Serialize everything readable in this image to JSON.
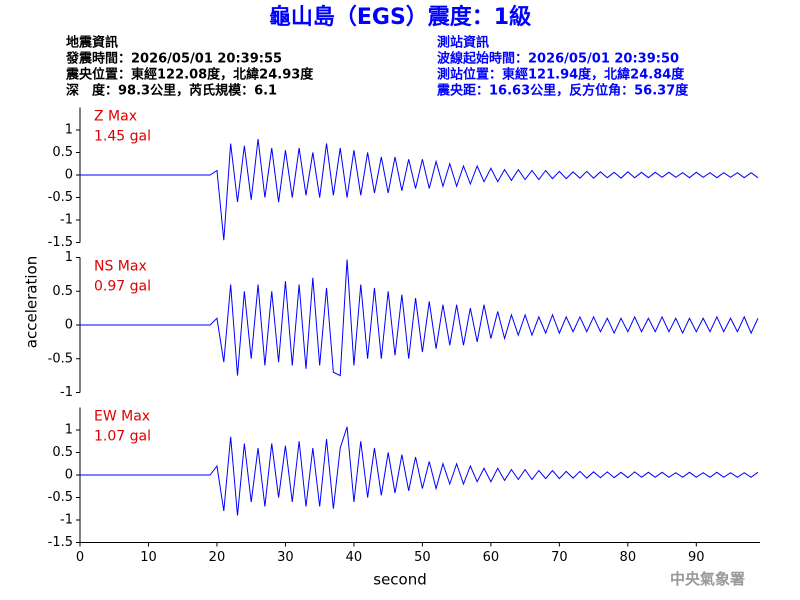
{
  "header": {
    "title": "龜山島（EGS）震度：1級",
    "left": [
      "地震資訊",
      "發震時間：2026/05/01 20:39:55",
      "震央位置：東經122.08度，北緯24.93度",
      "深　度：98.3公里，芮氏規模：6.1"
    ],
    "right": [
      "測站資訊",
      "波線起始時間：2026/05/01 20:39:50",
      "測站位置：東經121.94度，北緯24.84度",
      "震央距：16.63公里，反方位角：56.37度"
    ]
  },
  "y_label": "acceleration",
  "x_label": "second",
  "footer": "中央氣象署",
  "chart_data": [
    {
      "type": "line",
      "annotations": [
        "Z Max",
        "1.45 gal"
      ],
      "xlim": [
        0,
        99.3
      ],
      "ylim": [
        -1.5,
        1.5
      ],
      "yticks": [
        -1.5,
        -1,
        -0.5,
        0,
        0.5,
        1
      ],
      "series": [
        {
          "name": "Z",
          "color": "#0000ff",
          "x": [
            0,
            19,
            20,
            21,
            22,
            23,
            24,
            25,
            26,
            27,
            28,
            29,
            30,
            31,
            32,
            33,
            34,
            35,
            36,
            37,
            38,
            39,
            40,
            41,
            42,
            43,
            44,
            45,
            46,
            47,
            48,
            49,
            50,
            51,
            52,
            53,
            54,
            55,
            56,
            57,
            58,
            59,
            60,
            61,
            62,
            63,
            64,
            65,
            66,
            67,
            68,
            69,
            70,
            71,
            72,
            73,
            74,
            75,
            76,
            77,
            78,
            79,
            80,
            81,
            82,
            83,
            84,
            85,
            86,
            87,
            88,
            89,
            90,
            91,
            92,
            93,
            94,
            95,
            96,
            97,
            98,
            99
          ],
          "values": [
            0,
            0,
            0.1,
            -1.45,
            0.7,
            -0.6,
            0.65,
            -0.55,
            0.8,
            -0.5,
            0.6,
            -0.6,
            0.55,
            -0.5,
            0.6,
            -0.45,
            0.5,
            -0.5,
            0.7,
            -0.45,
            0.6,
            -0.5,
            0.55,
            -0.45,
            0.5,
            -0.4,
            0.4,
            -0.4,
            0.4,
            -0.35,
            0.35,
            -0.3,
            0.35,
            -0.3,
            0.3,
            -0.25,
            0.25,
            -0.25,
            0.2,
            -0.2,
            0.2,
            -0.15,
            0.15,
            -0.15,
            0.12,
            -0.12,
            0.12,
            -0.1,
            0.1,
            -0.1,
            0.1,
            -0.08,
            0.08,
            -0.08,
            0.07,
            -0.07,
            0.08,
            -0.07,
            0.07,
            -0.06,
            0.06,
            -0.07,
            0.07,
            -0.06,
            0.06,
            -0.06,
            0.06,
            -0.05,
            0.06,
            -0.05,
            0.05,
            -0.06,
            0.06,
            -0.05,
            0.05,
            -0.06,
            0.05,
            -0.05,
            0.05,
            -0.06,
            0.05,
            -0.06
          ]
        }
      ]
    },
    {
      "type": "line",
      "annotations": [
        "NS Max",
        "0.97 gal"
      ],
      "xlim": [
        0,
        99.3
      ],
      "ylim": [
        -1,
        1
      ],
      "yticks": [
        -1,
        -0.5,
        0,
        0.5,
        1
      ],
      "series": [
        {
          "name": "NS",
          "color": "#0000ff",
          "x": [
            0,
            19,
            20,
            21,
            22,
            23,
            24,
            25,
            26,
            27,
            28,
            29,
            30,
            31,
            32,
            33,
            34,
            35,
            36,
            37,
            38,
            39,
            40,
            41,
            42,
            43,
            44,
            45,
            46,
            47,
            48,
            49,
            50,
            51,
            52,
            53,
            54,
            55,
            56,
            57,
            58,
            59,
            60,
            61,
            62,
            63,
            64,
            65,
            66,
            67,
            68,
            69,
            70,
            71,
            72,
            73,
            74,
            75,
            76,
            77,
            78,
            79,
            80,
            81,
            82,
            83,
            84,
            85,
            86,
            87,
            88,
            89,
            90,
            91,
            92,
            93,
            94,
            95,
            96,
            97,
            98,
            99
          ],
          "values": [
            0,
            0,
            0.1,
            -0.55,
            0.6,
            -0.75,
            0.5,
            -0.5,
            0.6,
            -0.6,
            0.5,
            -0.55,
            0.65,
            -0.6,
            0.6,
            -0.65,
            0.7,
            -0.6,
            0.55,
            -0.7,
            -0.75,
            0.97,
            -0.6,
            0.6,
            -0.5,
            0.55,
            -0.5,
            0.5,
            -0.45,
            0.45,
            -0.5,
            0.4,
            -0.4,
            0.35,
            -0.35,
            0.3,
            -0.3,
            0.3,
            -0.3,
            0.25,
            -0.25,
            0.3,
            -0.2,
            0.2,
            -0.2,
            0.15,
            -0.15,
            0.15,
            -0.15,
            0.12,
            -0.12,
            0.15,
            -0.12,
            0.12,
            -0.1,
            0.12,
            -0.1,
            0.12,
            -0.1,
            0.1,
            -0.12,
            0.1,
            -0.1,
            0.12,
            -0.1,
            0.1,
            -0.1,
            0.12,
            -0.1,
            0.1,
            -0.12,
            0.1,
            -0.1,
            0.1,
            -0.1,
            0.12,
            -0.1,
            0.1,
            -0.1,
            0.12,
            -0.12,
            0.1
          ]
        }
      ]
    },
    {
      "type": "line",
      "annotations": [
        "EW Max",
        "1.07 gal"
      ],
      "xlim": [
        0,
        99.3
      ],
      "ylim": [
        -1.5,
        1.5
      ],
      "yticks": [
        -1.5,
        -1,
        -0.5,
        0,
        0.5,
        1
      ],
      "xticks": [
        0,
        10,
        20,
        30,
        40,
        50,
        60,
        70,
        80,
        90
      ],
      "series": [
        {
          "name": "EW",
          "color": "#0000ff",
          "x": [
            0,
            19,
            20,
            21,
            22,
            23,
            24,
            25,
            26,
            27,
            28,
            29,
            30,
            31,
            32,
            33,
            34,
            35,
            36,
            37,
            38,
            39,
            40,
            41,
            42,
            43,
            44,
            45,
            46,
            47,
            48,
            49,
            50,
            51,
            52,
            53,
            54,
            55,
            56,
            57,
            58,
            59,
            60,
            61,
            62,
            63,
            64,
            65,
            66,
            67,
            68,
            69,
            70,
            71,
            72,
            73,
            74,
            75,
            76,
            77,
            78,
            79,
            80,
            81,
            82,
            83,
            84,
            85,
            86,
            87,
            88,
            89,
            90,
            91,
            92,
            93,
            94,
            95,
            96,
            97,
            98,
            99
          ],
          "values": [
            0,
            0,
            0.2,
            -0.8,
            0.85,
            -0.9,
            0.7,
            -0.6,
            0.6,
            -0.7,
            0.7,
            -0.5,
            0.65,
            -0.6,
            0.75,
            -0.7,
            0.6,
            -0.7,
            0.8,
            -0.75,
            0.6,
            1.07,
            -0.6,
            0.75,
            -0.5,
            0.6,
            -0.45,
            0.5,
            -0.4,
            0.45,
            -0.35,
            0.4,
            -0.3,
            0.3,
            -0.3,
            0.25,
            -0.2,
            0.25,
            -0.2,
            0.2,
            -0.15,
            0.15,
            -0.15,
            0.15,
            -0.12,
            0.12,
            -0.1,
            0.12,
            -0.1,
            0.1,
            -0.08,
            0.1,
            -0.08,
            0.08,
            -0.07,
            0.08,
            -0.07,
            0.07,
            -0.06,
            0.07,
            -0.06,
            0.06,
            -0.06,
            0.07,
            -0.05,
            0.06,
            -0.05,
            0.06,
            -0.05,
            0.05,
            -0.05,
            0.06,
            -0.05,
            0.05,
            -0.05,
            0.06,
            -0.05,
            0.05,
            -0.05,
            0.05,
            -0.05,
            0.06
          ]
        }
      ]
    }
  ]
}
